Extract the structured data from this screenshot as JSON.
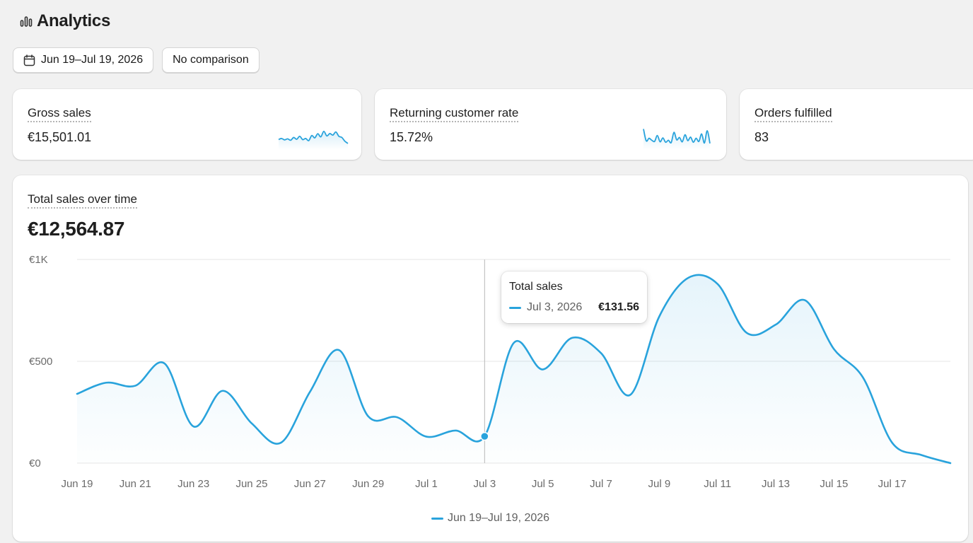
{
  "header": {
    "title": "Analytics",
    "icon": "bar-chart-icon"
  },
  "filters": {
    "date_range": "Jun 19–Jul 19, 2026",
    "comparison": "No comparison"
  },
  "metrics": [
    {
      "label": "Gross sales",
      "value": "€15,501.01",
      "sparkline": [
        0.42,
        0.47,
        0.4,
        0.45,
        0.38,
        0.52,
        0.43,
        0.58,
        0.41,
        0.47,
        0.36,
        0.62,
        0.5,
        0.71,
        0.55,
        0.83,
        0.6,
        0.72,
        0.64,
        0.8,
        0.58,
        0.52,
        0.33,
        0.22
      ]
    },
    {
      "label": "Returning customer rate",
      "value": "15.72%",
      "sparkline": [
        0.95,
        0.35,
        0.48,
        0.38,
        0.32,
        0.62,
        0.3,
        0.5,
        0.28,
        0.38,
        0.26,
        0.78,
        0.4,
        0.52,
        0.3,
        0.66,
        0.36,
        0.54,
        0.28,
        0.48,
        0.32,
        0.7,
        0.24,
        0.86,
        0.22
      ]
    },
    {
      "label": "Orders fulfilled",
      "value": "83"
    }
  ],
  "main_chart": {
    "label": "Total sales over time",
    "total": "€12,564.87",
    "tooltip": {
      "title": "Total sales",
      "date": "Jul 3, 2026",
      "value": "€131.56"
    },
    "legend": "Jun 19–Jul 19, 2026",
    "accent_color": "#29a3dc"
  },
  "chart_data": {
    "type": "area",
    "x": [
      "Jun 19",
      "Jun 20",
      "Jun 21",
      "Jun 22",
      "Jun 23",
      "Jun 24",
      "Jun 25",
      "Jun 26",
      "Jun 27",
      "Jun 28",
      "Jun 29",
      "Jun 30",
      "Jul 1",
      "Jul 2",
      "Jul 3",
      "Jul 4",
      "Jul 5",
      "Jul 6",
      "Jul 7",
      "Jul 8",
      "Jul 9",
      "Jul 10",
      "Jul 11",
      "Jul 12",
      "Jul 13",
      "Jul 14",
      "Jul 15",
      "Jul 16",
      "Jul 17",
      "Jul 18",
      "Jul 19"
    ],
    "series": [
      {
        "values": [
          340,
          395,
          380,
          490,
          180,
          355,
          195,
          100,
          350,
          555,
          230,
          225,
          130,
          160,
          132,
          590,
          460,
          615,
          540,
          335,
          720,
          910,
          880,
          640,
          680,
          800,
          560,
          420,
          100,
          40,
          0
        ]
      }
    ],
    "x_ticks": [
      "Jun 19",
      "Jun 21",
      "Jun 23",
      "Jun 25",
      "Jun 27",
      "Jun 29",
      "Jul 1",
      "Jul 3",
      "Jul 5",
      "Jul 7",
      "Jul 9",
      "Jul 11",
      "Jul 13",
      "Jul 15",
      "Jul 17"
    ],
    "y_ticks": [
      0,
      500,
      1000
    ],
    "y_tick_labels": [
      "€0",
      "€500",
      "€1K"
    ],
    "ylim": [
      0,
      1000
    ],
    "highlight": {
      "x": "Jul 3",
      "value": 131.56
    },
    "grid": true
  }
}
